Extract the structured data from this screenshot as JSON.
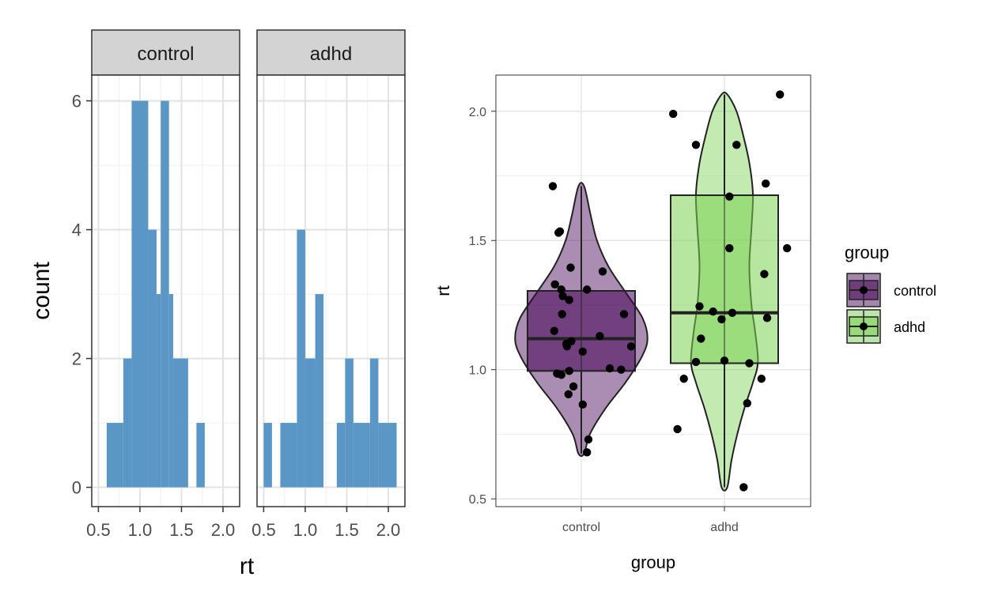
{
  "chart_data": [
    {
      "type": "bar",
      "subtype": "faceted-histogram",
      "title": "",
      "xlabel": "rt",
      "ylabel": "count",
      "facets": [
        "control",
        "adhd"
      ],
      "xlim": [
        0.42,
        2.2
      ],
      "ylim": [
        -0.3,
        6.4
      ],
      "xticks": [
        "0.5",
        "1.0",
        "1.5",
        "2.0"
      ],
      "yticks": [
        "0",
        "2",
        "4",
        "6"
      ],
      "grid": true,
      "bar_color": "#5B97C6",
      "bin_width": 0.1,
      "series": [
        {
          "facet": "control",
          "bins": [
            {
              "x0": 0.6,
              "x1": 0.8,
              "count": 1
            },
            {
              "x0": 0.8,
              "x1": 0.9,
              "count": 2
            },
            {
              "x0": 0.9,
              "x1": 1.1,
              "count": 6
            },
            {
              "x0": 1.1,
              "x1": 1.2,
              "count": 4
            },
            {
              "x0": 1.2,
              "x1": 1.25,
              "count": 3
            },
            {
              "x0": 1.25,
              "x1": 1.35,
              "count": 6
            },
            {
              "x0": 1.35,
              "x1": 1.4,
              "count": 3
            },
            {
              "x0": 1.4,
              "x1": 1.58,
              "count": 2
            },
            {
              "x0": 1.68,
              "x1": 1.78,
              "count": 1
            }
          ]
        },
        {
          "facet": "adhd",
          "bins": [
            {
              "x0": 0.5,
              "x1": 0.6,
              "count": 1
            },
            {
              "x0": 0.7,
              "x1": 0.9,
              "count": 1
            },
            {
              "x0": 0.9,
              "x1": 1.0,
              "count": 4
            },
            {
              "x0": 1.0,
              "x1": 1.12,
              "count": 2
            },
            {
              "x0": 1.12,
              "x1": 1.22,
              "count": 3
            },
            {
              "x0": 1.38,
              "x1": 1.48,
              "count": 1
            },
            {
              "x0": 1.48,
              "x1": 1.58,
              "count": 2
            },
            {
              "x0": 1.58,
              "x1": 1.78,
              "count": 1
            },
            {
              "x0": 1.78,
              "x1": 1.88,
              "count": 2
            },
            {
              "x0": 1.88,
              "x1": 2.1,
              "count": 1
            }
          ]
        }
      ]
    },
    {
      "type": "scatter",
      "subtype": "violin-box-jitter",
      "title": "",
      "xlabel": "group",
      "ylabel": "rt",
      "categories": [
        "control",
        "adhd"
      ],
      "ylim": [
        0.47,
        2.14
      ],
      "yticks": [
        "0.5",
        "1.0",
        "1.5",
        "2.0"
      ],
      "grid": true,
      "legend": {
        "title": "group",
        "position": "right",
        "entries": [
          {
            "label": "control",
            "color": "#440154"
          },
          {
            "label": "adhd",
            "color": "#7AD151"
          }
        ]
      },
      "series": [
        {
          "name": "control",
          "color": "#440154",
          "box": {
            "q1": 0.995,
            "median": 1.12,
            "q3": 1.305,
            "whisker_low": 0.675,
            "whisker_high": 1.71
          },
          "violin_profile": [
            [
              0.675,
              0.04
            ],
            [
              0.75,
              0.12
            ],
            [
              0.85,
              0.34
            ],
            [
              0.95,
              0.62
            ],
            [
              1.05,
              0.85
            ],
            [
              1.12,
              0.93
            ],
            [
              1.2,
              0.86
            ],
            [
              1.3,
              0.62
            ],
            [
              1.4,
              0.38
            ],
            [
              1.5,
              0.22
            ],
            [
              1.6,
              0.13
            ],
            [
              1.71,
              0.04
            ]
          ],
          "points": [
            {
              "x": -0.4,
              "y": 1.71
            },
            {
              "x": -0.32,
              "y": 1.53
            },
            {
              "x": -0.3,
              "y": 1.535
            },
            {
              "x": -0.15,
              "y": 1.395
            },
            {
              "x": 0.3,
              "y": 1.38
            },
            {
              "x": -0.37,
              "y": 1.33
            },
            {
              "x": -0.28,
              "y": 1.31
            },
            {
              "x": -0.26,
              "y": 1.285
            },
            {
              "x": -0.17,
              "y": 1.27
            },
            {
              "x": 0.08,
              "y": 1.31
            },
            {
              "x": -0.27,
              "y": 1.215
            },
            {
              "x": 0.6,
              "y": 1.215
            },
            {
              "x": -0.38,
              "y": 1.15
            },
            {
              "x": 0.26,
              "y": 1.13
            },
            {
              "x": -0.21,
              "y": 1.1
            },
            {
              "x": -0.2,
              "y": 1.09
            },
            {
              "x": -0.14,
              "y": 1.11
            },
            {
              "x": 0.7,
              "y": 1.09
            },
            {
              "x": 0.02,
              "y": 1.07
            },
            {
              "x": 0.4,
              "y": 1.005
            },
            {
              "x": -0.34,
              "y": 0.985
            },
            {
              "x": -0.17,
              "y": 0.995
            },
            {
              "x": 0.56,
              "y": 1.0
            },
            {
              "x": -0.28,
              "y": 0.98
            },
            {
              "x": -0.11,
              "y": 0.935
            },
            {
              "x": -0.18,
              "y": 0.905
            },
            {
              "x": 0.02,
              "y": 0.865
            },
            {
              "x": 0.1,
              "y": 0.73
            },
            {
              "x": 0.08,
              "y": 0.68
            }
          ]
        },
        {
          "name": "adhd",
          "color": "#7AD151",
          "box": {
            "q1": 1.025,
            "median": 1.22,
            "q3": 1.675,
            "whisker_low": 0.545,
            "whisker_high": 2.065
          },
          "violin_profile": [
            [
              0.545,
              0.04
            ],
            [
              0.65,
              0.1
            ],
            [
              0.75,
              0.18
            ],
            [
              0.85,
              0.28
            ],
            [
              0.95,
              0.4
            ],
            [
              1.03,
              0.47
            ],
            [
              1.15,
              0.43
            ],
            [
              1.25,
              0.38
            ],
            [
              1.4,
              0.35
            ],
            [
              1.55,
              0.38
            ],
            [
              1.68,
              0.4
            ],
            [
              1.8,
              0.35
            ],
            [
              1.9,
              0.27
            ],
            [
              2.0,
              0.17
            ],
            [
              2.065,
              0.04
            ]
          ],
          "points": [
            {
              "x": 0.78,
              "y": 2.065
            },
            {
              "x": -0.72,
              "y": 1.99
            },
            {
              "x": -0.4,
              "y": 1.87
            },
            {
              "x": 0.17,
              "y": 1.87
            },
            {
              "x": 0.58,
              "y": 1.72
            },
            {
              "x": 0.07,
              "y": 1.67
            },
            {
              "x": 0.88,
              "y": 1.47
            },
            {
              "x": 0.07,
              "y": 1.47
            },
            {
              "x": 0.56,
              "y": 1.37
            },
            {
              "x": -0.35,
              "y": 1.245
            },
            {
              "x": -0.16,
              "y": 1.225
            },
            {
              "x": -0.04,
              "y": 1.195
            },
            {
              "x": -0.33,
              "y": 1.12
            },
            {
              "x": -0.4,
              "y": 1.03
            },
            {
              "x": 0.0,
              "y": 1.035
            },
            {
              "x": 0.35,
              "y": 1.025
            },
            {
              "x": -0.57,
              "y": 0.965
            },
            {
              "x": 0.52,
              "y": 0.965
            },
            {
              "x": 0.11,
              "y": 1.22
            },
            {
              "x": 0.6,
              "y": 1.2
            },
            {
              "x": -0.66,
              "y": 0.77
            },
            {
              "x": 0.27,
              "y": 0.545
            },
            {
              "x": 0.32,
              "y": 0.87
            }
          ]
        }
      ]
    }
  ]
}
